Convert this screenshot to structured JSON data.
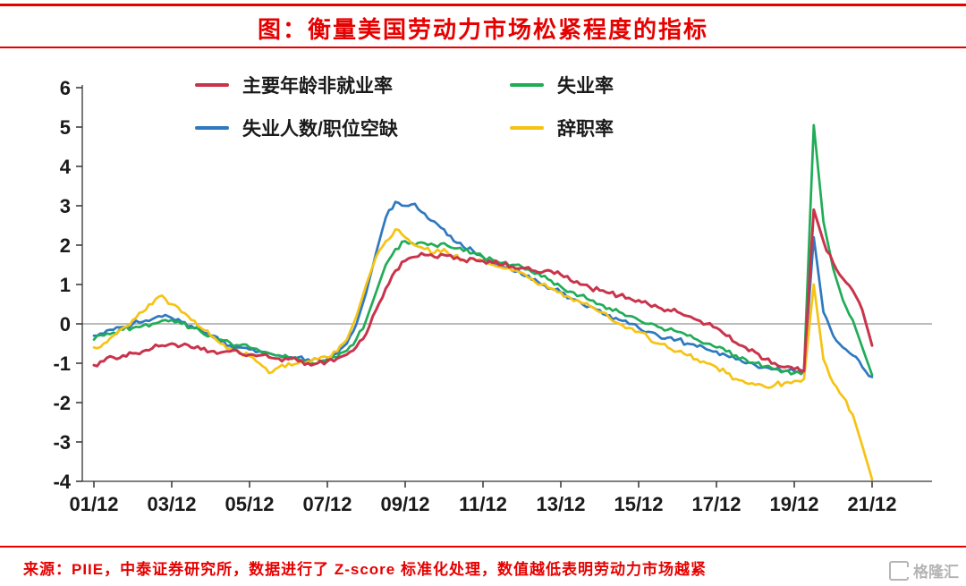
{
  "title": "图：衡量美国劳动力市场松紧程度的指标",
  "source_note": "来源：PIIE，中泰证券研究所，数据进行了 Z-score 标准化处理，数值越低表明劳动力市场越紧",
  "watermark": "格隆汇",
  "colors": {
    "accent_red": "#e60000",
    "axis": "#333333",
    "zero_line": "#a6a6a6",
    "series_red": "#c9344c",
    "series_green": "#21ac57",
    "series_blue": "#2e79c0",
    "series_yellow": "#f6c314"
  },
  "chart_data": {
    "type": "line",
    "title": "衡量美国劳动力市场松紧程度的指标",
    "xlabel": "",
    "ylabel": "",
    "ylim": [
      -4,
      6
    ],
    "y_ticks": [
      6,
      5,
      4,
      3,
      2,
      1,
      0,
      -1,
      -2,
      -3,
      -4
    ],
    "x_tick_labels": [
      "01/12",
      "03/12",
      "05/12",
      "07/12",
      "09/12",
      "11/12",
      "13/12",
      "15/12",
      "17/12",
      "19/12",
      "21/12"
    ],
    "x_start_year": 2001.9167,
    "x_step_years": 0.25,
    "grid": false,
    "zero_line": true,
    "legend_position": "top-inside",
    "note": "quarterly Z-score values, Dec-2001 to Dec-2021",
    "series": [
      {
        "name": "主要年龄非就业率",
        "color": "#c9344c",
        "values": [
          -1.05,
          -0.95,
          -0.85,
          -0.8,
          -0.75,
          -0.7,
          -0.62,
          -0.55,
          -0.5,
          -0.55,
          -0.6,
          -0.65,
          -0.7,
          -0.73,
          -0.7,
          -0.75,
          -0.78,
          -0.8,
          -0.85,
          -0.88,
          -0.9,
          -0.95,
          -1.0,
          -1.0,
          -0.95,
          -0.88,
          -0.78,
          -0.58,
          -0.25,
          0.35,
          0.9,
          1.35,
          1.6,
          1.7,
          1.75,
          1.7,
          1.75,
          1.65,
          1.62,
          1.66,
          1.6,
          1.55,
          1.5,
          1.46,
          1.42,
          1.36,
          1.3,
          1.34,
          1.25,
          1.1,
          1.0,
          0.92,
          0.85,
          0.78,
          0.72,
          0.66,
          0.6,
          0.5,
          0.42,
          0.36,
          0.3,
          0.2,
          0.1,
          0.0,
          -0.1,
          -0.3,
          -0.48,
          -0.6,
          -0.72,
          -0.9,
          -1.0,
          -1.1,
          -1.15,
          -1.2,
          2.9,
          2.1,
          1.55,
          1.15,
          0.85,
          0.35,
          -0.55
        ]
      },
      {
        "name": "失业率",
        "color": "#21ac57",
        "values": [
          -0.4,
          -0.3,
          -0.22,
          -0.15,
          -0.1,
          -0.05,
          0.0,
          0.08,
          0.1,
          0.0,
          -0.1,
          -0.2,
          -0.3,
          -0.4,
          -0.48,
          -0.55,
          -0.6,
          -0.68,
          -0.74,
          -0.8,
          -0.85,
          -0.9,
          -0.95,
          -1.0,
          -0.95,
          -0.85,
          -0.68,
          -0.38,
          0.1,
          0.8,
          1.5,
          1.9,
          2.1,
          2.0,
          2.05,
          2.0,
          2.05,
          1.92,
          1.85,
          1.8,
          1.7,
          1.62,
          1.55,
          1.5,
          1.45,
          1.32,
          1.2,
          1.1,
          0.95,
          0.82,
          0.72,
          0.6,
          0.5,
          0.4,
          0.3,
          0.2,
          0.1,
          0.0,
          -0.08,
          -0.15,
          -0.2,
          -0.3,
          -0.4,
          -0.5,
          -0.6,
          -0.7,
          -0.8,
          -0.9,
          -1.0,
          -1.08,
          -1.15,
          -1.2,
          -1.25,
          -1.22,
          5.05,
          2.6,
          1.4,
          0.6,
          0.1,
          -0.6,
          -1.3
        ]
      },
      {
        "name": "失业人数/职位空缺",
        "color": "#2e79c0",
        "values": [
          -0.3,
          -0.25,
          -0.15,
          -0.08,
          0.0,
          0.05,
          0.12,
          0.18,
          0.15,
          0.05,
          -0.05,
          -0.15,
          -0.3,
          -0.45,
          -0.55,
          -0.6,
          -0.65,
          -0.7,
          -0.75,
          -0.8,
          -0.85,
          -0.85,
          -0.9,
          -0.9,
          -0.9,
          -0.75,
          -0.5,
          0.0,
          0.8,
          1.8,
          2.7,
          3.1,
          3.0,
          3.05,
          2.8,
          2.6,
          2.4,
          2.1,
          1.95,
          1.85,
          1.7,
          1.55,
          1.45,
          1.35,
          1.25,
          1.12,
          1.0,
          0.9,
          0.8,
          0.65,
          0.55,
          0.45,
          0.35,
          0.22,
          0.1,
          0.0,
          -0.1,
          -0.2,
          -0.3,
          -0.35,
          -0.4,
          -0.5,
          -0.58,
          -0.65,
          -0.7,
          -0.8,
          -0.9,
          -1.0,
          -1.05,
          -1.1,
          -1.15,
          -1.2,
          -1.2,
          -1.2,
          2.2,
          0.3,
          -0.3,
          -0.6,
          -0.8,
          -1.1,
          -1.35
        ]
      },
      {
        "name": "辞职率",
        "color": "#f6c314",
        "values": [
          -0.6,
          -0.5,
          -0.3,
          -0.1,
          0.1,
          0.3,
          0.5,
          0.72,
          0.5,
          0.3,
          0.1,
          -0.1,
          -0.3,
          -0.5,
          -0.62,
          -0.72,
          -0.82,
          -1.0,
          -1.25,
          -1.1,
          -1.0,
          -1.0,
          -0.95,
          -0.9,
          -0.85,
          -0.7,
          -0.4,
          0.2,
          1.0,
          1.7,
          2.1,
          2.4,
          2.2,
          2.0,
          1.9,
          1.8,
          1.9,
          1.72,
          1.62,
          1.66,
          1.6,
          1.5,
          1.42,
          1.35,
          1.3,
          1.15,
          1.0,
          0.9,
          0.8,
          0.66,
          0.55,
          0.45,
          0.3,
          0.15,
          0.0,
          -0.1,
          -0.2,
          -0.35,
          -0.5,
          -0.6,
          -0.7,
          -0.8,
          -0.9,
          -1.0,
          -1.1,
          -1.25,
          -1.4,
          -1.5,
          -1.55,
          -1.6,
          -1.55,
          -1.5,
          -1.45,
          -1.4,
          1.0,
          -0.9,
          -1.5,
          -1.85,
          -2.3,
          -3.1,
          -3.95
        ]
      }
    ]
  }
}
